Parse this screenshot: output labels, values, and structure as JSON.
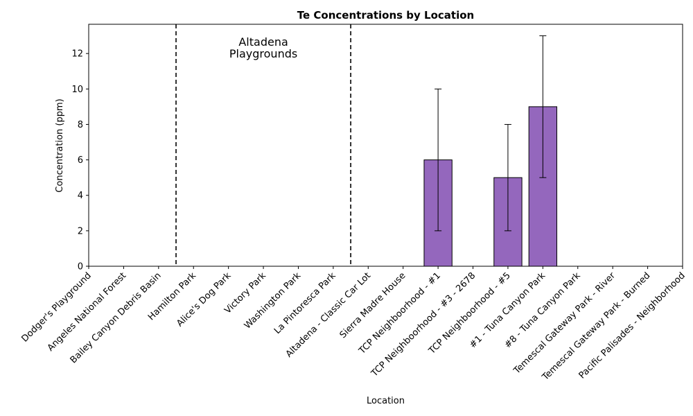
{
  "chart_data": {
    "type": "bar",
    "title": "Te Concentrations by Location",
    "xlabel": "Location",
    "ylabel": "Concentration (ppm)",
    "ylim": [
      0,
      13.65
    ],
    "yticks": [
      0,
      2,
      4,
      6,
      8,
      10,
      12
    ],
    "grid": false,
    "bar_color": "#9467bd",
    "categories": [
      "Dodger's Playground",
      "Angeles National Forest",
      "Bailey Canyon Debris Basin",
      "Hamilton Park",
      "Alice's Dog Park",
      "Victory Park",
      "Washington Park",
      "La Pintoresca Park",
      "Altadena - Classic Car Lot",
      "Sierra Madre House",
      "TCP Neighboorhood - #1",
      "TCP Neighboorhood - #3 - 2678",
      "TCP Neighboorhood - #5",
      "#1 - Tuna Canyon Park",
      "#8 - Tuna Canyon Park",
      "Temescal Gateway Park - River",
      "Temescal Gateway Park - Burned",
      "Pacific Palisades - Neighborhood"
    ],
    "values": [
      null,
      null,
      null,
      null,
      null,
      null,
      null,
      null,
      null,
      null,
      6,
      null,
      5,
      9,
      null,
      null,
      null,
      null
    ],
    "error_low": [
      null,
      null,
      null,
      null,
      null,
      null,
      null,
      null,
      null,
      null,
      2,
      null,
      2,
      5,
      null,
      null,
      null,
      null
    ],
    "error_high": [
      null,
      null,
      null,
      null,
      null,
      null,
      null,
      null,
      null,
      null,
      10,
      null,
      8,
      13,
      null,
      null,
      null,
      null
    ],
    "dividers_between": [
      [
        2,
        3
      ],
      [
        7,
        8
      ]
    ],
    "annotations": [
      {
        "text": [
          "Altadena",
          "Playgrounds"
        ],
        "category_index": 5
      }
    ]
  }
}
